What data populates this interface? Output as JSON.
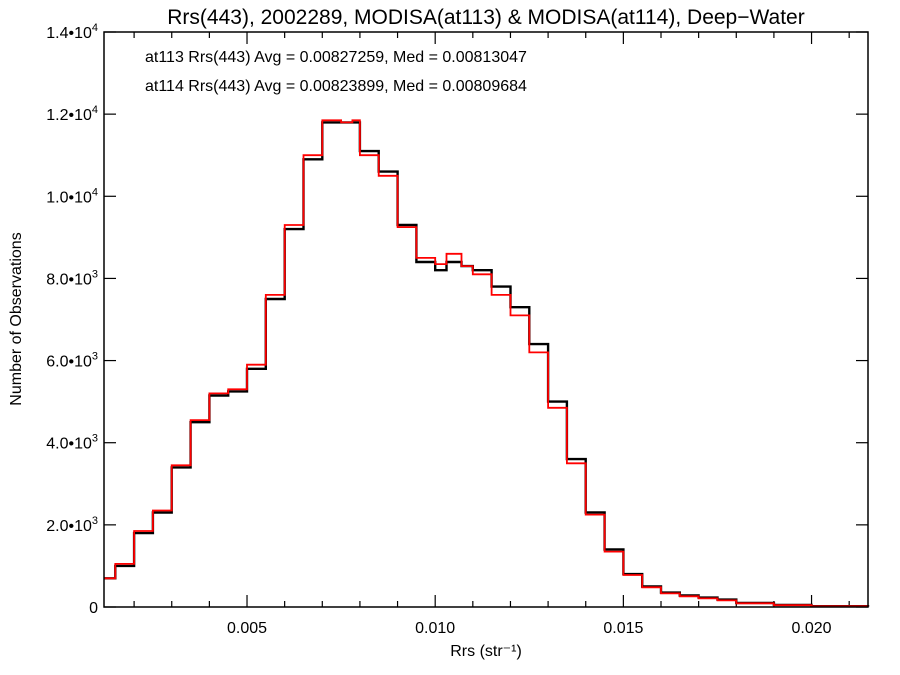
{
  "chart_data": {
    "type": "line",
    "title": "Rrs(443), 2002289, MODISA(at113) & MODISA(at114), Deep−Water",
    "xlabel": "Rrs (str⁻¹)",
    "ylabel": "Number of Observations",
    "xlim": [
      0.0012,
      0.0215
    ],
    "ylim": [
      0,
      14000
    ],
    "x_ticks": [
      {
        "value": 0.005,
        "label": "0.005"
      },
      {
        "value": 0.01,
        "label": "0.010"
      },
      {
        "value": 0.015,
        "label": "0.015"
      },
      {
        "value": 0.02,
        "label": "0.020"
      }
    ],
    "y_ticks": [
      {
        "value": 0,
        "mantissa": "0",
        "exp": ""
      },
      {
        "value": 2000,
        "mantissa": "2.0•10",
        "exp": "3"
      },
      {
        "value": 4000,
        "mantissa": "4.0•10",
        "exp": "3"
      },
      {
        "value": 6000,
        "mantissa": "6.0•10",
        "exp": "3"
      },
      {
        "value": 8000,
        "mantissa": "8.0•10",
        "exp": "3"
      },
      {
        "value": 10000,
        "mantissa": "1.0•10",
        "exp": "4"
      },
      {
        "value": 12000,
        "mantissa": "1.2•10",
        "exp": "4"
      },
      {
        "value": 14000,
        "mantissa": "1.4•10",
        "exp": "4"
      }
    ],
    "annotations": [
      {
        "text": "at113 Rrs(443) Avg = 0.00827259, Med = 0.00813047",
        "color": "#000000"
      },
      {
        "text": "at114 Rrs(443) Avg = 0.00823899, Med = 0.00809684",
        "color": "#ff0000"
      }
    ],
    "series": [
      {
        "color": "#000000",
        "x": [
          0.0012,
          0.0015,
          0.002,
          0.0025,
          0.003,
          0.0035,
          0.004,
          0.0045,
          0.005,
          0.0055,
          0.006,
          0.0065,
          0.007,
          0.0075,
          0.0078,
          0.008,
          0.0085,
          0.009,
          0.0095,
          0.01,
          0.0103,
          0.0107,
          0.011,
          0.0115,
          0.012,
          0.0125,
          0.013,
          0.0135,
          0.014,
          0.0145,
          0.015,
          0.0155,
          0.016,
          0.0165,
          0.017,
          0.0175,
          0.018,
          0.019,
          0.02,
          0.0215
        ],
        "y": [
          700,
          1000,
          1800,
          2300,
          3400,
          4500,
          5150,
          5250,
          5800,
          7500,
          9200,
          10900,
          11800,
          11800,
          11800,
          11100,
          10600,
          9300,
          8400,
          8200,
          8400,
          8300,
          8200,
          7800,
          7300,
          6400,
          5000,
          3600,
          2300,
          1400,
          800,
          500,
          350,
          280,
          230,
          180,
          100,
          50,
          20,
          5
        ]
      },
      {
        "color": "#ff0000",
        "x": [
          0.0012,
          0.0015,
          0.002,
          0.0025,
          0.003,
          0.0035,
          0.004,
          0.0045,
          0.005,
          0.0055,
          0.006,
          0.0065,
          0.007,
          0.0075,
          0.0078,
          0.008,
          0.0085,
          0.009,
          0.0095,
          0.01,
          0.0103,
          0.0107,
          0.011,
          0.0115,
          0.012,
          0.0125,
          0.013,
          0.0135,
          0.014,
          0.0145,
          0.015,
          0.0155,
          0.016,
          0.0165,
          0.017,
          0.0175,
          0.018,
          0.019,
          0.02,
          0.0215
        ],
        "y": [
          700,
          1050,
          1850,
          2350,
          3450,
          4550,
          5200,
          5300,
          5900,
          7600,
          9300,
          11000,
          11850,
          11800,
          11850,
          11000,
          10500,
          9250,
          8500,
          8350,
          8600,
          8300,
          8100,
          7600,
          7100,
          6200,
          4850,
          3500,
          2250,
          1350,
          780,
          480,
          330,
          260,
          210,
          160,
          90,
          45,
          18,
          5
        ]
      }
    ]
  }
}
